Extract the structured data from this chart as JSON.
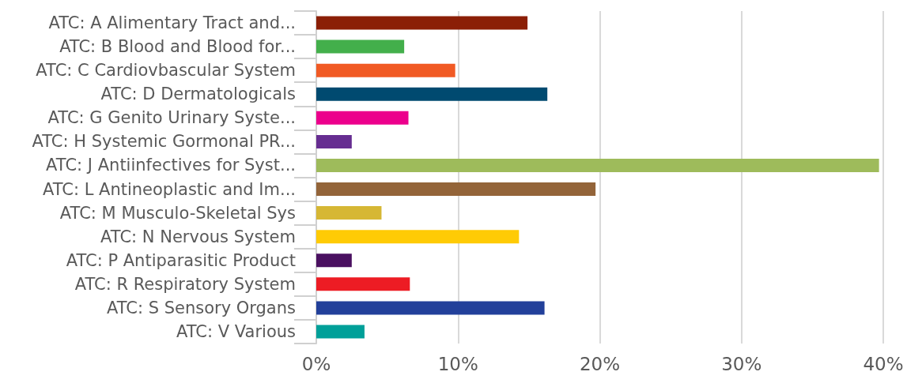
{
  "chart_data": {
    "type": "bar",
    "orientation": "horizontal",
    "categories": [
      "ATC: A Alimentary Tract and...",
      "ATC: B Blood and Blood for...",
      "ATC: C Cardiovbascular System",
      "ATC: D Dermatologicals",
      "ATC: G Genito Urinary Syste...",
      "ATC: H Systemic Gormonal PR...",
      "ATC: J Antiinfectives for Syst...",
      "ATC: L Antineoplastic and Im...",
      "ATC: M Musculo-Skeletal Sys",
      "ATC: N Nervous System",
      "ATC: P Antiparasitic Product",
      "ATC: R Respiratory System",
      "ATC: S Sensory Organs",
      "ATC: V Various"
    ],
    "values": [
      14.9,
      6.2,
      9.8,
      16.3,
      6.5,
      2.5,
      39.7,
      19.7,
      4.6,
      14.3,
      2.5,
      6.6,
      16.1,
      3.4
    ],
    "colors": [
      "#8b1f06",
      "#43af4b",
      "#f15a24",
      "#004a70",
      "#ec008c",
      "#662d91",
      "#9ebb5b",
      "#936439",
      "#d6b734",
      "#ffcb05",
      "#4a1060",
      "#ed1c24",
      "#22409a",
      "#00a099"
    ],
    "xlim": [
      0,
      40
    ],
    "xticks": [
      {
        "value": 0,
        "label": "0%"
      },
      {
        "value": 10,
        "label": "10%"
      },
      {
        "value": 20,
        "label": "20%"
      },
      {
        "value": 30,
        "label": "30%"
      },
      {
        "value": 40,
        "label": "40%"
      }
    ],
    "grid": "x"
  }
}
